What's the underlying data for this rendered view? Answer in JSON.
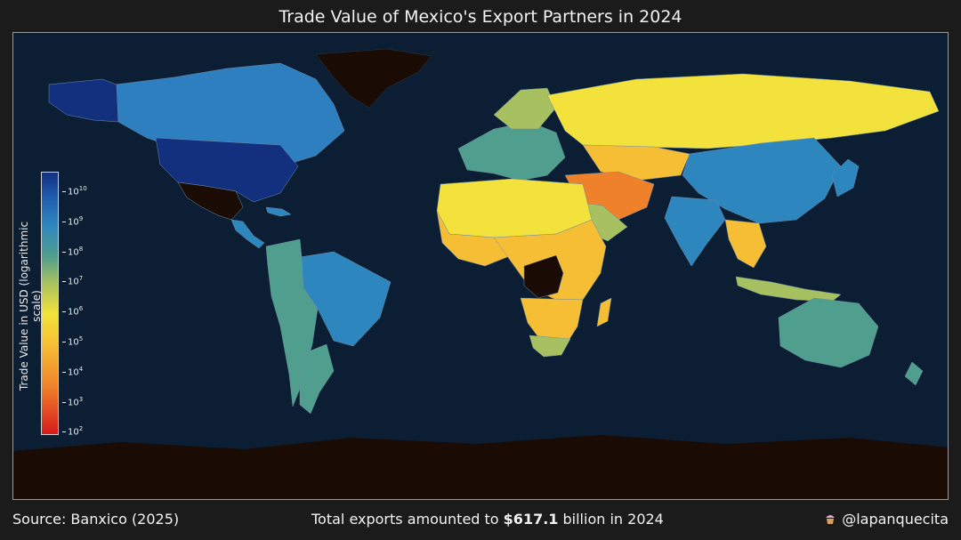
{
  "title": "Trade Value of Mexico's Export Partners in 2024",
  "colorbar": {
    "label": "Trade Value in USD (logarithmic scale)",
    "scale": "log",
    "ticks": [
      {
        "base": "10",
        "exp": "10"
      },
      {
        "base": "10",
        "exp": "9"
      },
      {
        "base": "10",
        "exp": "8"
      },
      {
        "base": "10",
        "exp": "7"
      },
      {
        "base": "10",
        "exp": "6"
      },
      {
        "base": "10",
        "exp": "5"
      },
      {
        "base": "10",
        "exp": "4"
      },
      {
        "base": "10",
        "exp": "3"
      },
      {
        "base": "10",
        "exp": "2"
      }
    ],
    "colors": [
      "#d7191c",
      "#f0812b",
      "#f6be35",
      "#f2e23b",
      "#a7c060",
      "#4f9e8e",
      "#2e86bf",
      "#1d56a8",
      "#13307f"
    ]
  },
  "map": {
    "ocean_color": "#0b1e33",
    "no_data_color": "#1a0b05",
    "reporter_color": "#1a0b05"
  },
  "footer": {
    "source": "Source: Banxico (2025)",
    "total_prefix": "Total exports amounted to ",
    "total_value": "$617.1",
    "total_suffix": " billion in 2024",
    "credit": "@lapanquecita",
    "credit_icon": "cupcake-icon"
  }
}
